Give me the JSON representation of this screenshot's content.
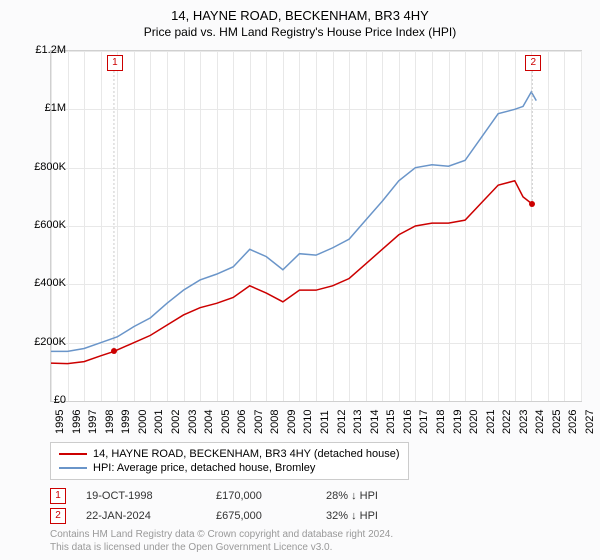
{
  "title": "14, HAYNE ROAD, BECKENHAM, BR3 4HY",
  "subtitle": "Price paid vs. HM Land Registry's House Price Index (HPI)",
  "chart": {
    "type": "line",
    "background_color": "#ffffff",
    "grid_color": "#e8e8e8",
    "border_color": "#d0d0d0",
    "xlim": [
      1995,
      2027
    ],
    "ylim": [
      0,
      1200000
    ],
    "ytick_step": 200000,
    "y_ticks": [
      "£0",
      "£200K",
      "£400K",
      "£600K",
      "£800K",
      "£1M",
      "£1.2M"
    ],
    "x_ticks": [
      "1995",
      "1996",
      "1997",
      "1998",
      "1999",
      "2000",
      "2001",
      "2002",
      "2003",
      "2004",
      "2005",
      "2006",
      "2007",
      "2008",
      "2009",
      "2010",
      "2011",
      "2012",
      "2013",
      "2014",
      "2015",
      "2016",
      "2017",
      "2018",
      "2019",
      "2020",
      "2021",
      "2022",
      "2023",
      "2024",
      "2025",
      "2026",
      "2027"
    ],
    "label_fontsize": 11,
    "title_fontsize": 13,
    "subtitle_fontsize": 12,
    "series": [
      {
        "name": "14, HAYNE ROAD, BECKENHAM, BR3 4HY (detached house)",
        "color": "#cc0000",
        "line_width": 1.5,
        "data": [
          [
            1995,
            130000
          ],
          [
            1996,
            128000
          ],
          [
            1997,
            135000
          ],
          [
            1998,
            155000
          ],
          [
            1998.8,
            170000
          ],
          [
            1999,
            175000
          ],
          [
            2000,
            200000
          ],
          [
            2001,
            225000
          ],
          [
            2002,
            260000
          ],
          [
            2003,
            295000
          ],
          [
            2004,
            320000
          ],
          [
            2005,
            335000
          ],
          [
            2006,
            355000
          ],
          [
            2007,
            395000
          ],
          [
            2008,
            370000
          ],
          [
            2009,
            340000
          ],
          [
            2010,
            380000
          ],
          [
            2011,
            380000
          ],
          [
            2012,
            395000
          ],
          [
            2013,
            420000
          ],
          [
            2014,
            470000
          ],
          [
            2015,
            520000
          ],
          [
            2016,
            570000
          ],
          [
            2017,
            600000
          ],
          [
            2018,
            610000
          ],
          [
            2019,
            610000
          ],
          [
            2020,
            620000
          ],
          [
            2021,
            680000
          ],
          [
            2022,
            740000
          ],
          [
            2023,
            755000
          ],
          [
            2023.5,
            700000
          ],
          [
            2024.06,
            675000
          ]
        ]
      },
      {
        "name": "HPI: Average price, detached house, Bromley",
        "color": "#6a95c9",
        "line_width": 1.5,
        "data": [
          [
            1995,
            170000
          ],
          [
            1996,
            170000
          ],
          [
            1997,
            180000
          ],
          [
            1998,
            200000
          ],
          [
            1999,
            220000
          ],
          [
            2000,
            255000
          ],
          [
            2001,
            285000
          ],
          [
            2002,
            335000
          ],
          [
            2003,
            380000
          ],
          [
            2004,
            415000
          ],
          [
            2005,
            435000
          ],
          [
            2006,
            460000
          ],
          [
            2007,
            520000
          ],
          [
            2008,
            495000
          ],
          [
            2009,
            450000
          ],
          [
            2010,
            505000
          ],
          [
            2011,
            500000
          ],
          [
            2012,
            525000
          ],
          [
            2013,
            555000
          ],
          [
            2014,
            620000
          ],
          [
            2015,
            685000
          ],
          [
            2016,
            755000
          ],
          [
            2017,
            800000
          ],
          [
            2018,
            810000
          ],
          [
            2019,
            805000
          ],
          [
            2020,
            825000
          ],
          [
            2021,
            905000
          ],
          [
            2022,
            985000
          ],
          [
            2023,
            1000000
          ],
          [
            2023.5,
            1010000
          ],
          [
            2024,
            1060000
          ],
          [
            2024.3,
            1030000
          ]
        ]
      }
    ],
    "markers": [
      {
        "label": "1",
        "x": 1998.8,
        "y": 170000,
        "color": "#cc0000"
      },
      {
        "label": "2",
        "x": 2024.06,
        "y": 675000,
        "color": "#cc0000"
      }
    ]
  },
  "legend": {
    "items": [
      {
        "color": "#cc0000",
        "label": "14, HAYNE ROAD, BECKENHAM, BR3 4HY (detached house)"
      },
      {
        "color": "#6a95c9",
        "label": "HPI: Average price, detached house, Bromley"
      }
    ]
  },
  "transactions": [
    {
      "marker": "1",
      "date": "19-OCT-1998",
      "price": "£170,000",
      "pct": "28% ↓ HPI"
    },
    {
      "marker": "2",
      "date": "22-JAN-2024",
      "price": "£675,000",
      "pct": "32% ↓ HPI"
    }
  ],
  "attribution": {
    "line1": "Contains HM Land Registry data © Crown copyright and database right 2024.",
    "line2": "This data is licensed under the Open Government Licence v3.0."
  }
}
